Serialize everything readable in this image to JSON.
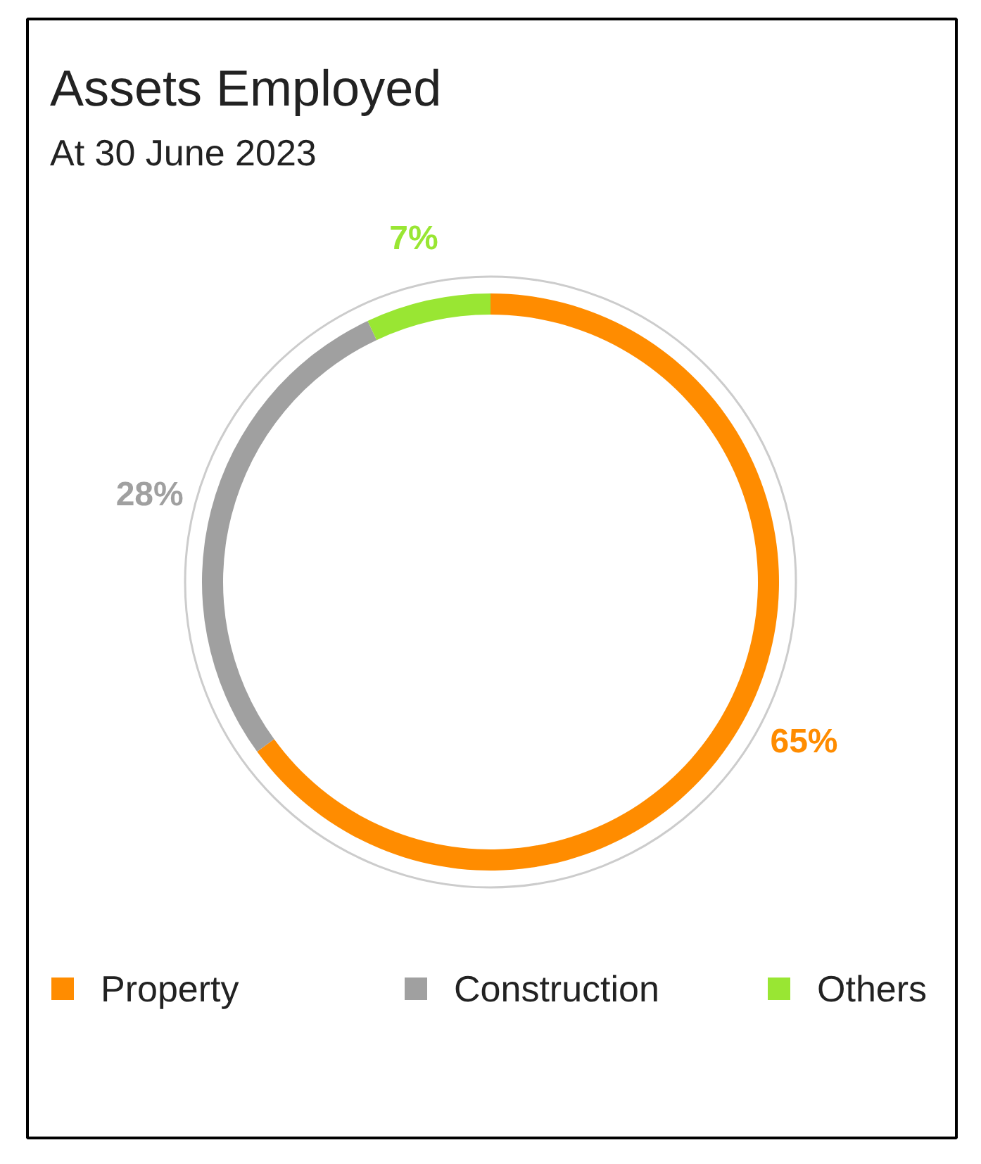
{
  "chart_data": {
    "type": "donut",
    "title": "Assets Employed",
    "subtitle": "At 30 June 2023",
    "categories": [
      "Property",
      "Construction",
      "Others"
    ],
    "values": [
      65,
      28,
      7
    ],
    "colors": [
      "#ff8c00",
      "#a0a0a0",
      "#99e633"
    ],
    "value_labels": [
      "65%",
      "28%",
      "7%"
    ],
    "legend": "bottom"
  }
}
